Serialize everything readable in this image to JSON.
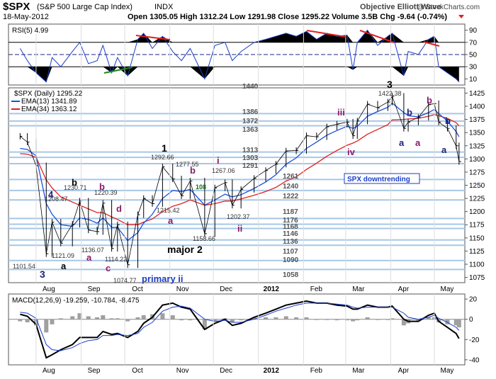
{
  "header": {
    "symbol": "$SPX",
    "name": "(S&P 500 Large Cap Index)",
    "exchange": "INDX",
    "date": "18-May-2012",
    "ohlc": "Open 1305.05  High 1312.24  Low 1291.98  Close 1295.22  Volume 3.5B  Chg -9.64 (-0.74%)",
    "author": "Objective Elliott Wave",
    "watermark": "@ StockCharts.com"
  },
  "colors": {
    "price_up": "#000000",
    "ema13": "#1f4fd8",
    "ema34": "#e02020",
    "hline": "#a6c7e8",
    "macd_hist": "#a0a0a0",
    "wave_navy": "#1a237e",
    "wave_purple": "#8b1a6b",
    "trend_red": "#e02020",
    "trend_green": "#1b8a1b",
    "box_blue": "#1a3cc8"
  },
  "rsi_panel": {
    "legend": "RSI(5) 4.99",
    "ticks": [
      "90",
      "70",
      "50",
      "30",
      "10"
    ]
  },
  "price_panel": {
    "legend": "$SPX (Daily) 1295.22",
    "ema13_label": "EMA(13) 1341.89",
    "ema34_label": "EMA(34) 1363.12",
    "ticks": [
      "1425",
      "1400",
      "1375",
      "1350",
      "1325",
      "1300",
      "1275",
      "1250",
      "1225",
      "1200",
      "1175",
      "1150",
      "1125",
      "1100",
      "1075"
    ],
    "box_text": "SPX downtrending",
    "level_labels": [
      "1440",
      "1386",
      "1372",
      "1363",
      "1313",
      "1303",
      "1291",
      "1261",
      "1240",
      "1222",
      "1187",
      "1176",
      "1168",
      "1146",
      "1136",
      "1107",
      "1090",
      "1058"
    ],
    "price_labels": [
      "1422.38",
      "1292.66",
      "1277.55",
      "1267.06",
      "1230.71",
      "1220.39",
      "1208.47",
      "1215.42",
      "1202.37",
      "1158.66",
      "1136.07",
      "1121.09",
      "1114.22",
      "1101.54",
      "1074.77",
      "108"
    ],
    "wave_labels_navy": [
      "3",
      "1",
      "3",
      "4",
      "a",
      "b",
      "a",
      "a",
      "b",
      "primary ii"
    ],
    "wave_labels_purple": [
      "b",
      "c",
      "b",
      "d",
      "a",
      "b",
      "i",
      "ii",
      "iii",
      "iv",
      "b",
      "a"
    ],
    "wave_labels_black": [
      "b",
      "a",
      "major 2"
    ]
  },
  "macd_panel": {
    "legend": "MACD(12,26,9) -19.259, -10.784, -8.475",
    "ticks": [
      "20",
      "0",
      "-20",
      "-40"
    ]
  },
  "x_axis": {
    "months": [
      "Aug",
      "Sep",
      "Oct",
      "Nov",
      "Dec",
      "2012",
      "Feb",
      "Mar",
      "Apr",
      "May"
    ]
  },
  "chart_data": {
    "type": "line",
    "title": "$SPX (S&P 500 Large Cap Index) INDX",
    "y_range_price": [
      1065,
      1435
    ],
    "y_range_rsi": [
      0,
      100
    ],
    "y_range_macd": [
      -45,
      25
    ],
    "horizontal_levels": [
      1440,
      1386,
      1372,
      1363,
      1313,
      1303,
      1291,
      1261,
      1240,
      1222,
      1187,
      1176,
      1168,
      1146,
      1136,
      1107,
      1090,
      1058
    ],
    "series": [
      {
        "name": "$SPX (Daily)",
        "x": [
          "2011-07-21",
          "2011-07-26",
          "2011-08-01",
          "2011-08-08",
          "2011-08-12",
          "2011-08-18",
          "2011-08-26",
          "2011-08-31",
          "2011-09-06",
          "2011-09-12",
          "2011-09-16",
          "2011-09-22",
          "2011-09-26",
          "2011-10-03",
          "2011-10-10",
          "2011-10-14",
          "2011-10-20",
          "2011-10-27",
          "2011-11-03",
          "2011-11-09",
          "2011-11-15",
          "2011-11-25",
          "2011-12-02",
          "2011-12-09",
          "2011-12-14",
          "2011-12-20",
          "2011-12-29",
          "2012-01-06",
          "2012-01-13",
          "2012-01-20",
          "2012-01-27",
          "2012-02-03",
          "2012-02-10",
          "2012-02-17",
          "2012-02-24",
          "2012-03-02",
          "2012-03-06",
          "2012-03-09",
          "2012-03-16",
          "2012-03-23",
          "2012-03-30",
          "2012-04-02",
          "2012-04-10",
          "2012-04-13",
          "2012-04-20",
          "2012-04-27",
          "2012-05-01",
          "2012-05-04",
          "2012-05-10",
          "2012-05-16",
          "2012-05-18"
        ],
        "values": [
          1343,
          1332,
          1287,
          1120,
          1180,
          1140,
          1176,
          1220,
          1165,
          1162,
          1216,
          1130,
          1175,
          1099,
          1194,
          1225,
          1215,
          1285,
          1262,
          1230,
          1258,
          1158,
          1245,
          1255,
          1212,
          1242,
          1263,
          1278,
          1290,
          1315,
          1316,
          1344,
          1342,
          1361,
          1366,
          1370,
          1344,
          1372,
          1404,
          1397,
          1408,
          1419,
          1358,
          1370,
          1379,
          1403,
          1405,
          1370,
          1358,
          1325,
          1295
        ]
      },
      {
        "name": "EMA(13)",
        "values": [
          1320,
          1318,
          1306,
          1215,
          1195,
          1175,
          1172,
          1188,
          1185,
          1178,
          1188,
          1170,
          1170,
          1145,
          1160,
          1178,
          1195,
          1225,
          1240,
          1238,
          1242,
          1212,
          1222,
          1233,
          1228,
          1232,
          1244,
          1256,
          1270,
          1290,
          1302,
          1320,
          1332,
          1345,
          1354,
          1362,
          1358,
          1362,
          1381,
          1390,
          1398,
          1406,
          1388,
          1382,
          1380,
          1388,
          1394,
          1386,
          1372,
          1352,
          1342
        ]
      },
      {
        "name": "EMA(34)",
        "values": [
          1310,
          1309,
          1303,
          1260,
          1245,
          1228,
          1218,
          1212,
          1205,
          1198,
          1198,
          1190,
          1185,
          1175,
          1175,
          1180,
          1186,
          1200,
          1210,
          1215,
          1222,
          1212,
          1215,
          1220,
          1220,
          1224,
          1231,
          1238,
          1246,
          1258,
          1266,
          1280,
          1292,
          1305,
          1316,
          1326,
          1330,
          1334,
          1347,
          1356,
          1365,
          1374,
          1375,
          1376,
          1377,
          1381,
          1384,
          1382,
          1377,
          1369,
          1363
        ]
      },
      {
        "name": "RSI(5)",
        "values": [
          60,
          40,
          20,
          5,
          45,
          30,
          55,
          70,
          35,
          40,
          65,
          20,
          45,
          15,
          75,
          85,
          60,
          80,
          55,
          40,
          60,
          10,
          65,
          70,
          40,
          55,
          70,
          75,
          80,
          85,
          80,
          88,
          75,
          85,
          80,
          82,
          25,
          70,
          90,
          65,
          80,
          85,
          15,
          55,
          50,
          75,
          80,
          30,
          20,
          10,
          5
        ]
      },
      {
        "name": "MACD(12,26,9)",
        "values": [
          5,
          3,
          -5,
          -38,
          -35,
          -30,
          -25,
          -18,
          -18,
          -18,
          -12,
          -15,
          -14,
          -18,
          -12,
          -4,
          2,
          14,
          16,
          12,
          10,
          -10,
          -4,
          0,
          -6,
          -4,
          2,
          6,
          10,
          14,
          16,
          18,
          16,
          16,
          14,
          13,
          10,
          10,
          14,
          12,
          12,
          13,
          0,
          -2,
          -2,
          4,
          6,
          -2,
          -8,
          -14,
          -19
        ]
      },
      {
        "name": "MACD Signal",
        "values": [
          7,
          6,
          1,
          -25,
          -30,
          -31,
          -28,
          -24,
          -21,
          -20,
          -16,
          -16,
          -15,
          -16,
          -14,
          -8,
          -3,
          8,
          12,
          13,
          11,
          0,
          -2,
          -1,
          -3,
          -3,
          0,
          4,
          8,
          11,
          14,
          16,
          16,
          16,
          15,
          14,
          12,
          11,
          12,
          12,
          12,
          12,
          6,
          2,
          0,
          2,
          4,
          1,
          -3,
          -8,
          -11
        ]
      }
    ]
  }
}
